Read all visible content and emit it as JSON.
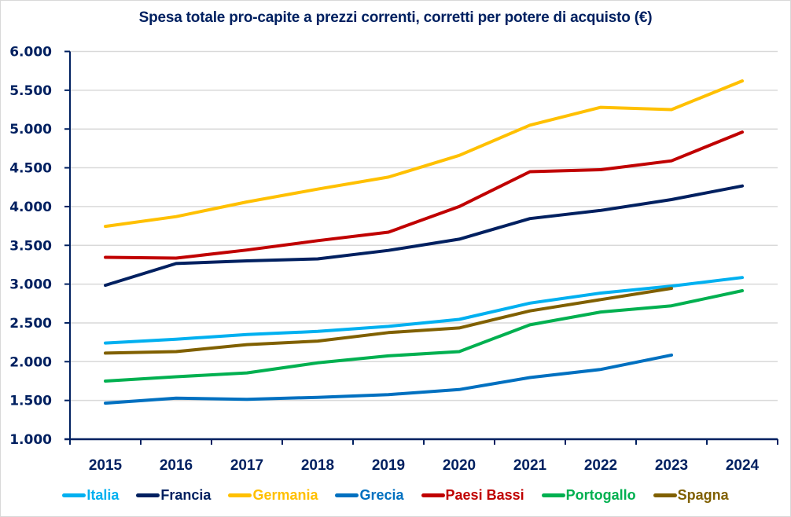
{
  "chart_data": {
    "type": "line",
    "title": "Spesa totale pro-capite a prezzi correnti, corretti per potere di acquisto (€)",
    "xlabel": "",
    "ylabel": "",
    "x": [
      "2015",
      "2016",
      "2017",
      "2018",
      "2019",
      "2020",
      "2021",
      "2022",
      "2023",
      "2024"
    ],
    "ylim": [
      1000,
      6000
    ],
    "yticks": [
      1000,
      1500,
      2000,
      2500,
      3000,
      3500,
      4000,
      4500,
      5000,
      5500,
      6000
    ],
    "ytick_labels": [
      "1.000",
      "1.500",
      "2.000",
      "2.500",
      "3.000",
      "3.500",
      "4.000",
      "4.500",
      "5.000",
      "5.500",
      "6.000"
    ],
    "grid": "horizontal",
    "legend_position": "bottom",
    "series": [
      {
        "name": "Italia",
        "color": "#00B0F0",
        "values": [
          2240,
          2290,
          2350,
          2390,
          2455,
          2545,
          2755,
          2885,
          2975,
          3085
        ]
      },
      {
        "name": "Francia",
        "color": "#002060",
        "values": [
          2985,
          3265,
          3300,
          3325,
          3435,
          3580,
          3845,
          3950,
          4090,
          4265
        ]
      },
      {
        "name": "Germania",
        "color": "#FFC000",
        "values": [
          3745,
          3870,
          4060,
          4225,
          4380,
          4660,
          5050,
          5280,
          5250,
          5620
        ]
      },
      {
        "name": "Grecia",
        "color": "#0070C0",
        "values": [
          1465,
          1530,
          1515,
          1540,
          1575,
          1640,
          1795,
          1900,
          2085,
          null
        ]
      },
      {
        "name": "Paesi Bassi",
        "color": "#C00000",
        "values": [
          3345,
          3335,
          3440,
          3560,
          3670,
          4000,
          4450,
          4475,
          4590,
          4960
        ]
      },
      {
        "name": "Portogallo",
        "color": "#00B050",
        "values": [
          1750,
          1805,
          1855,
          1985,
          2075,
          2130,
          2475,
          2640,
          2720,
          2915
        ]
      },
      {
        "name": "Spagna",
        "color": "#806000",
        "values": [
          2110,
          2130,
          2220,
          2265,
          2375,
          2435,
          2655,
          2800,
          2945,
          null
        ]
      }
    ]
  },
  "colors": {
    "axis": "#002060",
    "grid": "#d9d9d9"
  }
}
